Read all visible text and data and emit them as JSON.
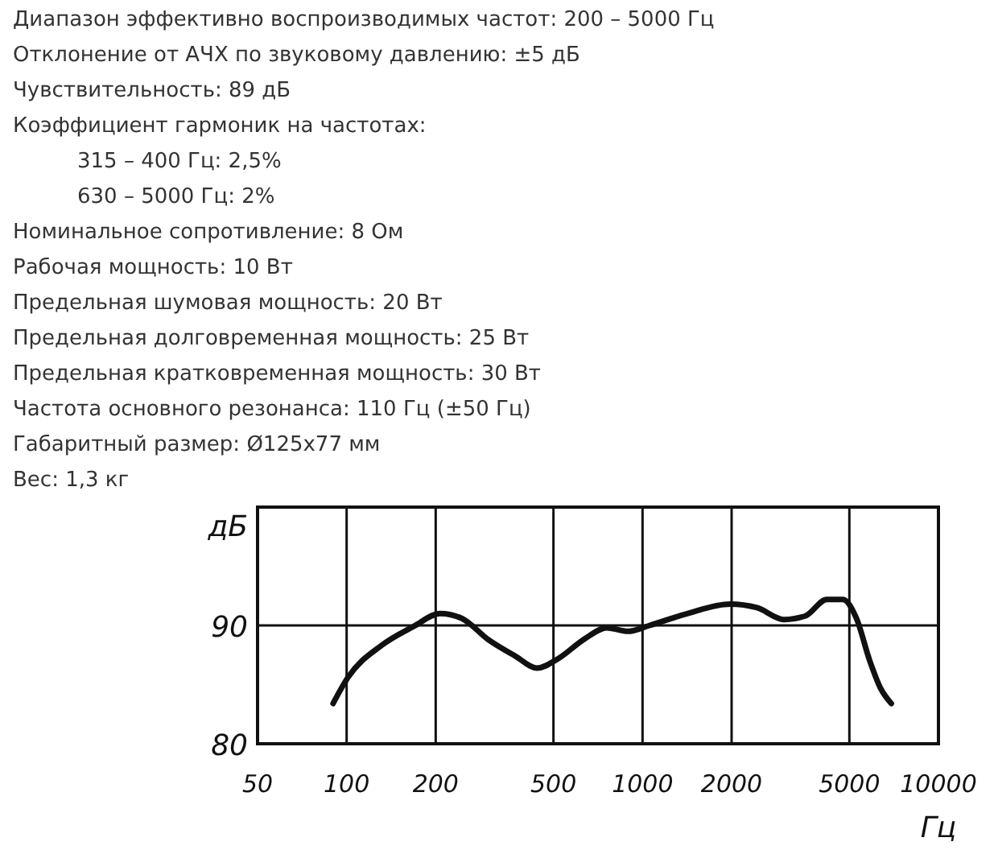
{
  "chart_data": {
    "type": "line",
    "xlabel": "Гц",
    "ylabel": "дБ",
    "log": "x",
    "grid": true,
    "color": "#111111",
    "annotations": [
      "Диапазон эффективно воспроизводимых частот: 200 – 5000 Гц",
      "Отклонение от АЧХ по звуковому давлению: ±5 дБ",
      "Чувствительность: 89 дБ",
      "Коэффициент гармоник на частотах:",
      "315 – 400 Гц: 2,5%",
      "630 – 5000 Гц: 2%",
      "Номинальное сопротивление: 8 Ом",
      "Рабочая мощность: 10 Вт",
      "Предельная шумовая мощность: 20 Вт",
      "Предельная долговременная мощность: 25 Вт",
      "Предельная кратковременная мощность: 30 Вт",
      "Частота основного резонанса: 110 Гц (±50 Гц)",
      "Габаритный размер: Ø125x77 мм",
      "Вес: 1,3 кг"
    ],
    "x": [
      90,
      101,
      131,
      168,
      207,
      245,
      301,
      372,
      440,
      519,
      640,
      757,
      893,
      1057,
      1416,
      1977,
      2436,
      3004,
      3549,
      4196,
      4753,
      5282,
      5862,
      6370,
      6930
    ],
    "values": [
      83.4,
      85.6,
      88.3,
      89.9,
      91.0,
      90.6,
      88.8,
      87.4,
      86.4,
      87.2,
      88.9,
      89.8,
      89.5,
      90.0,
      91.0,
      91.8,
      91.5,
      90.5,
      90.8,
      92.2,
      92.2,
      90.6,
      87.0,
      84.7,
      83.4
    ],
    "xlim": [
      50,
      10000
    ],
    "xticks": [
      50,
      100,
      200,
      500,
      1000,
      2000,
      5000,
      10000
    ],
    "ylim": [
      80,
      100
    ],
    "yticks": [
      80,
      90
    ]
  }
}
